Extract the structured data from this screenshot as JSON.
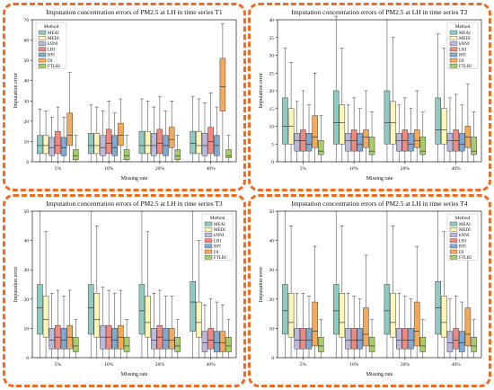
{
  "palette": {
    "MEAI": "#8fc9c0",
    "MEDI": "#fbf5b8",
    "kNNI": "#bcb8dc",
    "LRI": "#f08a80",
    "RFI": "#7fa8d2",
    "DI": "#f2a95a",
    "FTLRI": "#a7cd6a",
    "frame": "#f26a21"
  },
  "chart_data": [
    {
      "type": "box",
      "title": "Imputation concentration errors of PM2.5 at LH in time series T1",
      "xlabel": "Missing rate",
      "ylabel": "Imputation error",
      "ylim": [
        0,
        70
      ],
      "yticks": [
        0,
        10,
        20,
        30,
        40,
        50,
        60,
        70
      ],
      "categories": [
        "5%",
        "10%",
        "20%",
        "40%"
      ],
      "legend": {
        "title": "Method",
        "position": "top-left",
        "entries": [
          "MEAI",
          "MEDI",
          "kNNI",
          "LRI",
          "RFI",
          "DI",
          "FTLRI"
        ]
      },
      "series": [
        {
          "name": "MEAI",
          "boxes": [
            [
              0,
              4,
              8,
              13,
              26
            ],
            [
              0,
              4,
              8,
              14,
              28
            ],
            [
              0,
              4,
              8,
              15,
              31
            ],
            [
              0,
              4,
              9,
              15,
              32
            ]
          ]
        },
        {
          "name": "MEDI",
          "boxes": [
            [
              0,
              4,
              8,
              13,
              25
            ],
            [
              0,
              4,
              8,
              14,
              27
            ],
            [
              0,
              4,
              8,
              15,
              30
            ],
            [
              0,
              4,
              8,
              15,
              31
            ]
          ]
        },
        {
          "name": "kNNI",
          "boxes": [
            [
              0,
              3,
              7,
              12,
              22
            ],
            [
              0,
              3,
              7,
              13,
              25
            ],
            [
              0,
              3,
              8,
              14,
              27
            ],
            [
              0,
              3,
              8,
              14,
              29
            ]
          ]
        },
        {
          "name": "LRI",
          "boxes": [
            [
              0,
              4,
              8,
              15,
              27
            ],
            [
              0,
              4,
              9,
              16,
              30
            ],
            [
              0,
              4,
              9,
              16,
              32
            ],
            [
              0,
              4,
              10,
              17,
              34
            ]
          ]
        },
        {
          "name": "RFI",
          "boxes": [
            [
              0,
              3,
              7,
              12,
              22
            ],
            [
              0,
              3,
              7,
              13,
              24
            ],
            [
              0,
              3,
              8,
              13,
              25
            ],
            [
              0,
              3,
              8,
              13,
              27
            ]
          ]
        },
        {
          "name": "DI",
          "boxes": [
            [
              0,
              8,
              13,
              24,
              44
            ],
            [
              0,
              8,
              13,
              19,
              31
            ],
            [
              0,
              7,
              11,
              17,
              30
            ],
            [
              0,
              25,
              37,
              51,
              68
            ]
          ]
        },
        {
          "name": "FTLRI",
          "boxes": [
            [
              0,
              1,
              3,
              6,
              13
            ],
            [
              0,
              1,
              3,
              6,
              13
            ],
            [
              0,
              1,
              3,
              6,
              13
            ],
            [
              0,
              2,
              3,
              6,
              13
            ]
          ]
        }
      ]
    },
    {
      "type": "box",
      "title": "Imputation concentration errors of PM2.5 at LH in time series T2",
      "xlabel": "Missing rate",
      "ylabel": "Imputation error",
      "ylim": [
        0,
        40
      ],
      "yticks": [
        0,
        5,
        10,
        15,
        20,
        25,
        30,
        35,
        40
      ],
      "categories": [
        "5%",
        "10%",
        "20%",
        "40%"
      ],
      "legend": {
        "title": "Method",
        "position": "top-right",
        "entries": [
          "MEAI",
          "MEDI",
          "kNNI",
          "LRI",
          "RFI",
          "DI",
          "FTLRI"
        ]
      },
      "series": [
        {
          "name": "MEAI",
          "boxes": [
            [
              0,
              5,
              10,
              18,
              32
            ],
            [
              0,
              5,
              11,
              20,
              41
            ],
            [
              0,
              5,
              11,
              20,
              40
            ],
            [
              0,
              5,
              9,
              18,
              36
            ]
          ]
        },
        {
          "name": "MEDI",
          "boxes": [
            [
              0,
              5,
              10,
              15,
              28
            ],
            [
              0,
              5,
              11,
              16,
              32
            ],
            [
              0,
              5,
              11,
              17,
              35
            ],
            [
              0,
              5,
              9,
              15,
              32
            ]
          ]
        },
        {
          "name": "kNNI",
          "boxes": [
            [
              0,
              3,
              6,
              8,
              17
            ],
            [
              0,
              3,
              6,
              8,
              16
            ],
            [
              0,
              3,
              6,
              8,
              16
            ],
            [
              0,
              3,
              6,
              8,
              18
            ]
          ]
        },
        {
          "name": "LRI",
          "boxes": [
            [
              0,
              3,
              6,
              9,
              20
            ],
            [
              0,
              3,
              6,
              9,
              18
            ],
            [
              0,
              3,
              6,
              9,
              18
            ],
            [
              0,
              3,
              6,
              9,
              19
            ]
          ]
        },
        {
          "name": "RFI",
          "boxes": [
            [
              0,
              3,
              5,
              8,
              16
            ],
            [
              0,
              3,
              5,
              8,
              15
            ],
            [
              0,
              3,
              5,
              8,
              15
            ],
            [
              0,
              3,
              5,
              8,
              16
            ]
          ]
        },
        {
          "name": "DI",
          "boxes": [
            [
              0,
              4,
              7,
              13,
              25
            ],
            [
              0,
              4,
              7,
              9,
              20
            ],
            [
              0,
              4,
              6,
              9,
              20
            ],
            [
              0,
              4,
              7,
              10,
              22
            ]
          ]
        },
        {
          "name": "FTLRI",
          "boxes": [
            [
              0,
              2,
              3,
              6,
              13
            ],
            [
              0,
              2,
              3,
              7,
              14
            ],
            [
              0,
              2,
              3,
              7,
              14
            ],
            [
              0,
              2,
              3,
              7,
              14
            ]
          ]
        }
      ]
    },
    {
      "type": "box",
      "title": "Imputation concentration errors of PM2.5 at LH in time series T3",
      "xlabel": "Missing rate",
      "ylabel": "Imputation error",
      "ylim": [
        0,
        50
      ],
      "yticks": [
        0,
        10,
        20,
        30,
        40,
        50
      ],
      "categories": [
        "5%",
        "10%",
        "20%",
        "40%"
      ],
      "legend": {
        "title": "Method",
        "position": "top-right",
        "entries": [
          "MEAI",
          "MEDI",
          "kNNI",
          "LRI",
          "RFI",
          "DI",
          "FTLRI"
        ]
      },
      "series": [
        {
          "name": "MEAI",
          "boxes": [
            [
              0,
              8,
              17,
              25,
              50
            ],
            [
              0,
              8,
              17,
              25,
              50
            ],
            [
              0,
              8,
              16,
              25,
              50
            ],
            [
              0,
              9,
              19,
              26,
              50
            ]
          ]
        },
        {
          "name": "MEDI",
          "boxes": [
            [
              0,
              7,
              13,
              21,
              43
            ],
            [
              0,
              7,
              13,
              22,
              45
            ],
            [
              0,
              7,
              12,
              21,
              43
            ],
            [
              0,
              7,
              12,
              19,
              40
            ]
          ]
        },
        {
          "name": "kNNI",
          "boxes": [
            [
              0,
              3,
              6,
              10,
              22
            ],
            [
              0,
              3,
              7,
              11,
              24
            ],
            [
              0,
              3,
              6,
              10,
              22
            ],
            [
              0,
              2,
              5,
              9,
              18
            ]
          ]
        },
        {
          "name": "LRI",
          "boxes": [
            [
              0,
              3,
              7,
              11,
              23
            ],
            [
              0,
              3,
              7,
              11,
              23
            ],
            [
              0,
              3,
              7,
              11,
              23
            ],
            [
              0,
              3,
              6,
              10,
              20
            ]
          ]
        },
        {
          "name": "RFI",
          "boxes": [
            [
              0,
              3,
              6,
              10,
              21
            ],
            [
              0,
              3,
              6,
              10,
              22
            ],
            [
              0,
              3,
              6,
              10,
              21
            ],
            [
              0,
              2,
              5,
              9,
              19
            ]
          ]
        },
        {
          "name": "DI",
          "boxes": [
            [
              0,
              3,
              7,
              11,
              23
            ],
            [
              0,
              3,
              7,
              11,
              23
            ],
            [
              0,
              3,
              6,
              10,
              21
            ],
            [
              0,
              2,
              5,
              9,
              18
            ]
          ]
        },
        {
          "name": "FTLRI",
          "boxes": [
            [
              0,
              2,
              4,
              7,
              13
            ],
            [
              0,
              2,
              4,
              7,
              13
            ],
            [
              0,
              2,
              4,
              7,
              13
            ],
            [
              0,
              2,
              4,
              7,
              13
            ]
          ]
        }
      ]
    },
    {
      "type": "box",
      "title": "Imputation concentration errors of PM2.5 at LH in time series T4",
      "xlabel": "Missing rate",
      "ylabel": "Imputation error",
      "ylim": [
        0,
        50
      ],
      "yticks": [
        0,
        10,
        20,
        30,
        40,
        50
      ],
      "categories": [
        "5%",
        "10%",
        "20%",
        "40%"
      ],
      "legend": {
        "title": "Method",
        "position": "top-right",
        "entries": [
          "MEAI",
          "MEDI",
          "kNNI",
          "LRI",
          "RFI",
          "DI",
          "FTLRI"
        ]
      },
      "series": [
        {
          "name": "MEAI",
          "boxes": [
            [
              0,
              8,
              16,
              25,
              50
            ],
            [
              0,
              8,
              16,
              25,
              50
            ],
            [
              0,
              8,
              16,
              25,
              50
            ],
            [
              0,
              8,
              17,
              26,
              50
            ]
          ]
        },
        {
          "name": "MEDI",
          "boxes": [
            [
              0,
              7,
              12,
              22,
              45
            ],
            [
              0,
              7,
              12,
              22,
              45
            ],
            [
              0,
              7,
              12,
              22,
              45
            ],
            [
              0,
              7,
              12,
              21,
              43
            ]
          ]
        },
        {
          "name": "kNNI",
          "boxes": [
            [
              0,
              3,
              6,
              10,
              22
            ],
            [
              0,
              3,
              6,
              10,
              22
            ],
            [
              0,
              3,
              6,
              10,
              22
            ],
            [
              0,
              2,
              5,
              9,
              20
            ]
          ]
        },
        {
          "name": "LRI",
          "boxes": [
            [
              0,
              3,
              6,
              10,
              22
            ],
            [
              0,
              3,
              6,
              10,
              21
            ],
            [
              0,
              3,
              6,
              10,
              21
            ],
            [
              0,
              3,
              6,
              10,
              21
            ]
          ]
        },
        {
          "name": "RFI",
          "boxes": [
            [
              0,
              3,
              6,
              10,
              21
            ],
            [
              0,
              3,
              6,
              10,
              20
            ],
            [
              0,
              3,
              6,
              10,
              20
            ],
            [
              0,
              2,
              5,
              9,
              19
            ]
          ]
        },
        {
          "name": "DI",
          "boxes": [
            [
              0,
              4,
              9,
              19,
              38
            ],
            [
              0,
              4,
              8,
              17,
              35
            ],
            [
              0,
              4,
              9,
              19,
              38
            ],
            [
              0,
              4,
              8,
              17,
              35
            ]
          ]
        },
        {
          "name": "FTLRI",
          "boxes": [
            [
              0,
              2,
              4,
              7,
              13
            ],
            [
              0,
              2,
              4,
              7,
              13
            ],
            [
              0,
              2,
              4,
              7,
              13
            ],
            [
              0,
              2,
              4,
              7,
              13
            ]
          ]
        }
      ]
    }
  ]
}
